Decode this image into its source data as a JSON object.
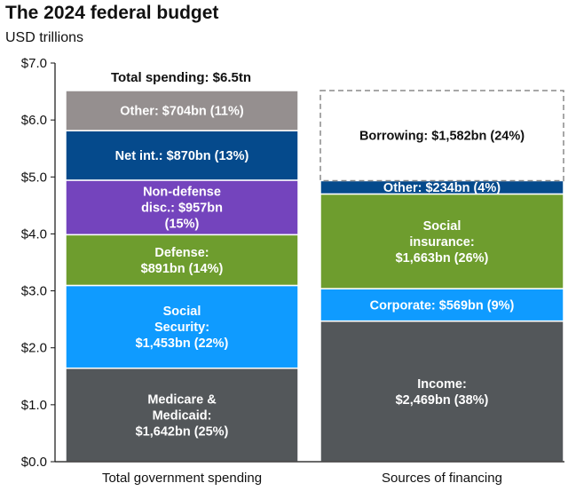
{
  "title": "The 2024 federal budget",
  "subtitle": "USD trillions",
  "chart_data": {
    "type": "bar",
    "stacked": true,
    "categories": [
      "Total government spending",
      "Sources of financing"
    ],
    "ylim": [
      0,
      7
    ],
    "yticks": [
      "$0.0",
      "$1.0",
      "$2.0",
      "$3.0",
      "$4.0",
      "$5.0",
      "$6.0",
      "$7.0"
    ],
    "annotation": "Total spending: $6.5tn",
    "stacks": [
      {
        "category": "Total government spending",
        "segments": [
          {
            "value": 1.642,
            "label": [
              "Medicare &",
              "Medicaid:",
              "$1,642bn (25%)"
            ],
            "color": "#53575a"
          },
          {
            "value": 1.453,
            "label": [
              "Social",
              "Security:",
              "$1,453bn (22%)"
            ],
            "color": "#0f9bff"
          },
          {
            "value": 0.891,
            "label": [
              "Defense:",
              "$891bn (14%)"
            ],
            "color": "#6e9d2e"
          },
          {
            "value": 0.957,
            "label": [
              "Non-defense",
              "disc.: $957bn",
              "(15%)"
            ],
            "color": "#7444bd"
          },
          {
            "value": 0.87,
            "label": [
              "Net int.: $870bn (13%)"
            ],
            "color": "#054a8c"
          },
          {
            "value": 0.704,
            "label": [
              "Other: $704bn (11%)"
            ],
            "color": "#958f8f"
          }
        ]
      },
      {
        "category": "Sources of financing",
        "segments": [
          {
            "value": 2.469,
            "label": [
              "Income:",
              "$2,469bn (38%)"
            ],
            "color": "#53575a"
          },
          {
            "value": 0.569,
            "label": [
              "Corporate: $569bn (9%)"
            ],
            "color": "#0f9bff"
          },
          {
            "value": 1.663,
            "label": [
              "Social",
              "insurance:",
              "$1,663bn (26%)"
            ],
            "color": "#6e9d2e"
          },
          {
            "value": 0.234,
            "label": [
              "Other: $234bn (4%)"
            ],
            "color": "#054a8c"
          },
          {
            "value": 1.582,
            "label": [
              "Borrowing: $1,582bn (24%)"
            ],
            "color": "#ffffff",
            "dashed": true
          }
        ]
      }
    ]
  }
}
